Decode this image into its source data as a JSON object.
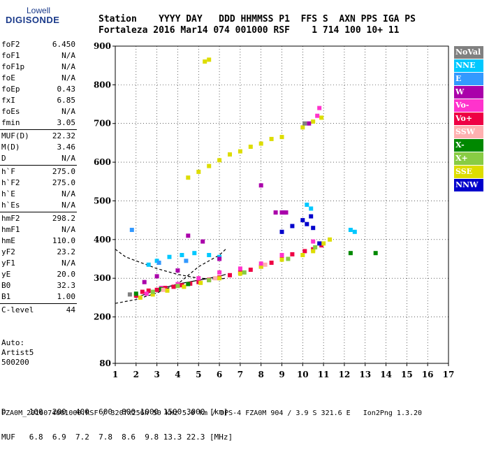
{
  "logo": {
    "line1": "Lowell",
    "line2": "DIGISONDE"
  },
  "header": {
    "line1": "Station    YYYY DAY   DDD HHMMSS P1  FFS S  AXN PPS IGA PS",
    "line2": "Fortaleza 2016 Mar14 074 001000 RSF    1 714 100 10+ 11"
  },
  "params": {
    "group1": [
      [
        "foF2",
        "6.450"
      ],
      [
        "foF1",
        "N/A"
      ],
      [
        "foF1p",
        "N/A"
      ],
      [
        "foE",
        "N/A"
      ],
      [
        "foEp",
        "0.43"
      ],
      [
        "fxI",
        "6.85"
      ],
      [
        "foEs",
        "N/A"
      ],
      [
        "fmin",
        "3.05"
      ]
    ],
    "group2": [
      [
        "MUF(D)",
        "22.32"
      ],
      [
        "M(D)",
        "3.46"
      ],
      [
        "D",
        "N/A"
      ]
    ],
    "group3": [
      [
        "h`F",
        "275.0"
      ],
      [
        "h`F2",
        "275.0"
      ],
      [
        "h`E",
        "N/A"
      ],
      [
        "h`Es",
        "N/A"
      ]
    ],
    "group4": [
      [
        "hmF2",
        "298.2"
      ],
      [
        "hmF1",
        "N/A"
      ],
      [
        "hmE",
        "110.0"
      ],
      [
        "yF2",
        "23.2"
      ],
      [
        "yF1",
        "N/A"
      ],
      [
        "yE",
        "20.0"
      ],
      [
        "B0",
        "32.3"
      ],
      [
        "B1",
        "1.00"
      ]
    ],
    "group5": [
      [
        "C-level",
        "44"
      ]
    ]
  },
  "auto": {
    "line1": "Auto:",
    "line2": "Artist5",
    "line3": "500200"
  },
  "legend": [
    {
      "label": "NoVal",
      "color": "#808080"
    },
    {
      "label": "NNE",
      "color": "#00c8ff"
    },
    {
      "label": "E",
      "color": "#3399ff"
    },
    {
      "label": "W",
      "color": "#aa00aa"
    },
    {
      "label": "Vo-",
      "color": "#ff33cc"
    },
    {
      "label": "Vo+",
      "color": "#ee0044"
    },
    {
      "label": "SSW",
      "color": "#ffb0b0"
    },
    {
      "label": "X-",
      "color": "#008800"
    },
    {
      "label": "X+",
      "color": "#88cc44"
    },
    {
      "label": "SSE",
      "color": "#dddd00"
    },
    {
      "label": "NNW",
      "color": "#0000cc"
    }
  ],
  "bottom": {
    "d_line": "D     100  200  400  600  800 1000 1500 3000 [km]",
    "muf_line": "MUF   6.8  6.9  7.2  7.8  8.6  9.8 13.3 22.3 [MHz]"
  },
  "footer": "FZA0M_2016074001000.RSF / 320fx256h 50 kHz 5.0 km / DPS-4 FZA0M 904 / 3.9 S 321.6 E   Ion2Png 1.3.20",
  "chart_data": {
    "type": "scatter",
    "xlim": [
      1,
      17
    ],
    "ylim": [
      80,
      900
    ],
    "xticks": [
      "1",
      "2",
      "3",
      "4",
      "5",
      "6",
      "7",
      "8",
      "9",
      "10",
      "11",
      "12",
      "13",
      "14",
      "15",
      "16",
      "17"
    ],
    "yticks": [
      {
        "v": 80,
        "label": "80"
      },
      {
        "v": 200,
        "label": "200"
      },
      {
        "v": 300,
        "label": "300"
      },
      {
        "v": 400,
        "label": "400"
      },
      {
        "v": 500,
        "label": "500"
      },
      {
        "v": 600,
        "label": "600"
      },
      {
        "v": 700,
        "label": "700"
      },
      {
        "v": 800,
        "label": "800"
      },
      {
        "v": 900,
        "label": "900"
      }
    ],
    "grid": true,
    "series": [
      {
        "name": "Vo+",
        "color": "#ee0044",
        "points": [
          [
            2.0,
            255
          ],
          [
            2.3,
            265
          ],
          [
            2.6,
            268
          ],
          [
            3.0,
            270
          ],
          [
            3.4,
            275
          ],
          [
            3.8,
            278
          ],
          [
            4.2,
            282
          ],
          [
            4.6,
            286
          ],
          [
            5.0,
            290
          ],
          [
            5.5,
            296
          ],
          [
            6.0,
            302
          ],
          [
            6.5,
            308
          ],
          [
            7.0,
            315
          ],
          [
            7.5,
            322
          ],
          [
            8.0,
            330
          ],
          [
            8.5,
            340
          ],
          [
            9.0,
            352
          ],
          [
            9.5,
            362
          ],
          [
            10.1,
            370
          ],
          [
            10.5,
            375
          ],
          [
            10.9,
            385
          ]
        ]
      },
      {
        "name": "SSE",
        "color": "#dddd00",
        "points": [
          [
            2.2,
            250
          ],
          [
            2.8,
            258
          ],
          [
            3.5,
            268
          ],
          [
            4.3,
            278
          ],
          [
            5.1,
            288
          ],
          [
            6.0,
            300
          ],
          [
            7.0,
            312
          ],
          [
            8.0,
            330
          ],
          [
            9.0,
            348
          ],
          [
            10.0,
            360
          ],
          [
            10.5,
            370
          ],
          [
            11.0,
            390
          ],
          [
            11.3,
            400
          ]
        ]
      },
      {
        "name": "SSE",
        "color": "#dddd00",
        "points": [
          [
            4.5,
            560
          ],
          [
            5.0,
            575
          ],
          [
            5.5,
            590
          ],
          [
            6.0,
            605
          ],
          [
            6.5,
            620
          ],
          [
            7.0,
            628
          ],
          [
            7.5,
            640
          ],
          [
            8.0,
            648
          ],
          [
            8.5,
            660
          ],
          [
            9.0,
            665
          ],
          [
            10.0,
            690
          ],
          [
            10.5,
            705
          ],
          [
            10.9,
            715
          ],
          [
            5.3,
            860
          ],
          [
            5.5,
            865
          ]
        ]
      },
      {
        "name": "Vo-",
        "color": "#ff33cc",
        "points": [
          [
            2.5,
            260
          ],
          [
            3.2,
            275
          ],
          [
            4.0,
            285
          ],
          [
            5.0,
            300
          ],
          [
            6.0,
            315
          ],
          [
            7.0,
            325
          ],
          [
            8.0,
            338
          ],
          [
            9.0,
            360
          ],
          [
            10.5,
            395
          ],
          [
            10.7,
            720
          ],
          [
            10.8,
            740
          ]
        ]
      },
      {
        "name": "NNE",
        "color": "#00c8ff",
        "points": [
          [
            2.6,
            335
          ],
          [
            3.0,
            345
          ],
          [
            3.6,
            355
          ],
          [
            4.2,
            360
          ],
          [
            4.8,
            365
          ],
          [
            5.5,
            360
          ],
          [
            6.0,
            355
          ],
          [
            9.1,
            470
          ],
          [
            10.2,
            490
          ],
          [
            10.4,
            480
          ],
          [
            12.3,
            425
          ],
          [
            12.5,
            420
          ]
        ]
      },
      {
        "name": "W",
        "color": "#aa00aa",
        "points": [
          [
            2.4,
            290
          ],
          [
            3.0,
            305
          ],
          [
            4.0,
            320
          ],
          [
            4.5,
            410
          ],
          [
            5.2,
            395
          ],
          [
            6.0,
            350
          ],
          [
            8.7,
            470
          ],
          [
            9.0,
            470
          ],
          [
            9.2,
            470
          ],
          [
            8.0,
            540
          ],
          [
            10.3,
            700
          ]
        ]
      },
      {
        "name": "NNW",
        "color": "#0000cc",
        "points": [
          [
            9.0,
            420
          ],
          [
            9.5,
            435
          ],
          [
            10.0,
            450
          ],
          [
            10.2,
            440
          ],
          [
            10.4,
            460
          ],
          [
            10.5,
            430
          ],
          [
            10.8,
            390
          ]
        ]
      },
      {
        "name": "X-",
        "color": "#008800",
        "points": [
          [
            2.0,
            260
          ],
          [
            3.2,
            272
          ],
          [
            4.5,
            285
          ],
          [
            12.3,
            365
          ],
          [
            13.5,
            365
          ]
        ]
      },
      {
        "name": "X+",
        "color": "#88cc44",
        "points": [
          [
            2.8,
            265
          ],
          [
            4.0,
            280
          ],
          [
            5.5,
            295
          ],
          [
            7.2,
            315
          ],
          [
            9.3,
            350
          ],
          [
            10.6,
            380
          ]
        ]
      },
      {
        "name": "SSW",
        "color": "#ffb0b0",
        "points": [
          [
            3.3,
            270
          ],
          [
            5.8,
            300
          ],
          [
            8.2,
            335
          ]
        ]
      },
      {
        "name": "E",
        "color": "#3399ff",
        "points": [
          [
            1.8,
            425
          ],
          [
            3.1,
            340
          ],
          [
            4.4,
            345
          ]
        ]
      },
      {
        "name": "NoVal",
        "color": "#808080",
        "points": [
          [
            1.7,
            258
          ],
          [
            10.1,
            700
          ]
        ]
      }
    ],
    "profile_lines": [
      [
        [
          1.0,
          235
        ],
        [
          1.5,
          240
        ],
        [
          2.0,
          245
        ],
        [
          3.0,
          262
        ],
        [
          4.0,
          285
        ],
        [
          5.0,
          330
        ],
        [
          6.0,
          360
        ],
        [
          6.3,
          375
        ]
      ],
      [
        [
          1.0,
          375
        ],
        [
          1.5,
          355
        ],
        [
          2.0,
          345
        ],
        [
          2.5,
          335
        ],
        [
          3.0,
          325
        ],
        [
          4.0,
          310
        ],
        [
          5.0,
          300
        ],
        [
          6.0,
          298
        ],
        [
          6.3,
          300
        ]
      ],
      [
        [
          2.0,
          250
        ],
        [
          3.0,
          270
        ],
        [
          4.0,
          285
        ],
        [
          5.0,
          295
        ],
        [
          6.0,
          305
        ],
        [
          6.3,
          310
        ]
      ]
    ]
  }
}
